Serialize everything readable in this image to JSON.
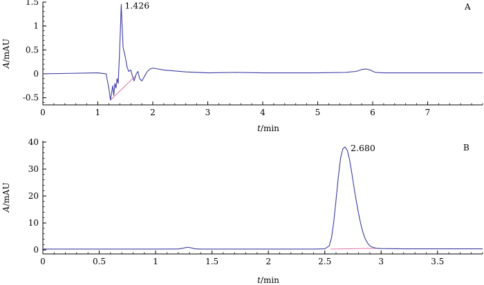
{
  "chart_data": [
    {
      "type": "line",
      "panel_tag": "A",
      "xlabel": "t/min",
      "ylabel": "A/mAU",
      "xlim": [
        0,
        8
      ],
      "ylim": [
        -0.65,
        1.5
      ],
      "xticks": [
        0,
        1,
        2,
        3,
        4,
        5,
        6,
        7
      ],
      "yticks": [
        -0.5,
        0,
        0.5,
        1,
        1.5
      ],
      "xtick_labels": [
        "0",
        "1",
        "2",
        "3",
        "4",
        "5",
        "6",
        "7"
      ],
      "ytick_labels": [
        "-0.5",
        "0",
        "0.5",
        "1",
        "1.5"
      ],
      "peak_label": "1.426",
      "peak": {
        "x": 1.426,
        "y": 1.45
      },
      "series": [
        {
          "x": [
            0,
            0.5,
            1.0,
            1.15,
            1.2,
            1.23,
            1.25,
            1.27,
            1.29,
            1.31,
            1.33,
            1.35,
            1.37,
            1.39,
            1.41,
            1.426,
            1.44,
            1.46,
            1.48,
            1.5,
            1.53,
            1.56,
            1.6,
            1.63,
            1.66,
            1.7,
            1.73,
            1.76,
            1.8,
            1.85,
            1.9,
            1.95,
            2.0,
            2.1,
            2.2,
            2.4,
            2.6,
            3.0,
            3.5,
            4.0,
            4.5,
            5.0,
            5.5,
            5.7,
            5.8,
            5.88,
            5.95,
            6.05,
            6.2,
            6.5,
            7.0,
            7.5,
            8.0
          ],
          "y": [
            0.0,
            0.01,
            0.02,
            0.0,
            -0.3,
            -0.55,
            -0.4,
            -0.25,
            -0.45,
            -0.2,
            -0.3,
            -0.1,
            -0.2,
            0.3,
            0.9,
            1.45,
            1.05,
            0.55,
            0.45,
            0.35,
            0.15,
            0.05,
            0.08,
            -0.05,
            -0.15,
            0.0,
            0.05,
            -0.1,
            -0.15,
            -0.05,
            0.05,
            0.1,
            0.12,
            0.1,
            0.08,
            0.06,
            0.04,
            0.02,
            0.03,
            0.02,
            0.02,
            0.02,
            0.03,
            0.05,
            0.09,
            0.1,
            0.08,
            0.03,
            0.02,
            0.02,
            0.02,
            0.02,
            0.02
          ]
        }
      ],
      "integration_baseline": {
        "x": [
          1.23,
          1.68
        ],
        "y": [
          -0.55,
          -0.05
        ]
      }
    },
    {
      "type": "line",
      "panel_tag": "B",
      "xlabel": "t/min",
      "ylabel": "A/mAU",
      "xlim": [
        0,
        3.9
      ],
      "ylim": [
        -1.5,
        40.5
      ],
      "xticks": [
        0,
        0.5,
        1,
        1.5,
        2,
        2.5,
        3,
        3.5
      ],
      "yticks": [
        0,
        10,
        20,
        30,
        40
      ],
      "xtick_labels": [
        "0",
        "0.5",
        "1",
        "1.5",
        "2",
        "2.5",
        "3",
        "3.5"
      ],
      "ytick_labels": [
        "0",
        "10",
        "20",
        "30",
        "40"
      ],
      "peak_label": "2.680",
      "peak": {
        "x": 2.68,
        "y": 38.2
      },
      "series": [
        {
          "x": [
            0,
            0.5,
            1.0,
            1.2,
            1.25,
            1.28,
            1.31,
            1.35,
            1.4,
            1.6,
            2.0,
            2.4,
            2.5,
            2.54,
            2.56,
            2.58,
            2.6,
            2.62,
            2.64,
            2.66,
            2.68,
            2.7,
            2.72,
            2.74,
            2.76,
            2.78,
            2.8,
            2.82,
            2.84,
            2.86,
            2.88,
            2.9,
            2.93,
            2.96,
            3.0,
            3.2,
            3.5,
            3.9
          ],
          "y": [
            0.3,
            0.3,
            0.3,
            0.35,
            0.7,
            1.0,
            0.8,
            0.4,
            0.3,
            0.3,
            0.3,
            0.3,
            0.4,
            1.5,
            4.5,
            10.5,
            18.5,
            27.0,
            34.0,
            37.5,
            38.2,
            37.0,
            33.5,
            28.5,
            23.0,
            18.0,
            13.5,
            9.5,
            6.3,
            4.0,
            2.5,
            1.5,
            0.9,
            0.6,
            0.5,
            0.4,
            0.4,
            0.4
          ]
        }
      ],
      "integration_baseline": {
        "x": [
          2.55,
          2.95
        ],
        "y": [
          0.3,
          0.6
        ]
      }
    }
  ]
}
